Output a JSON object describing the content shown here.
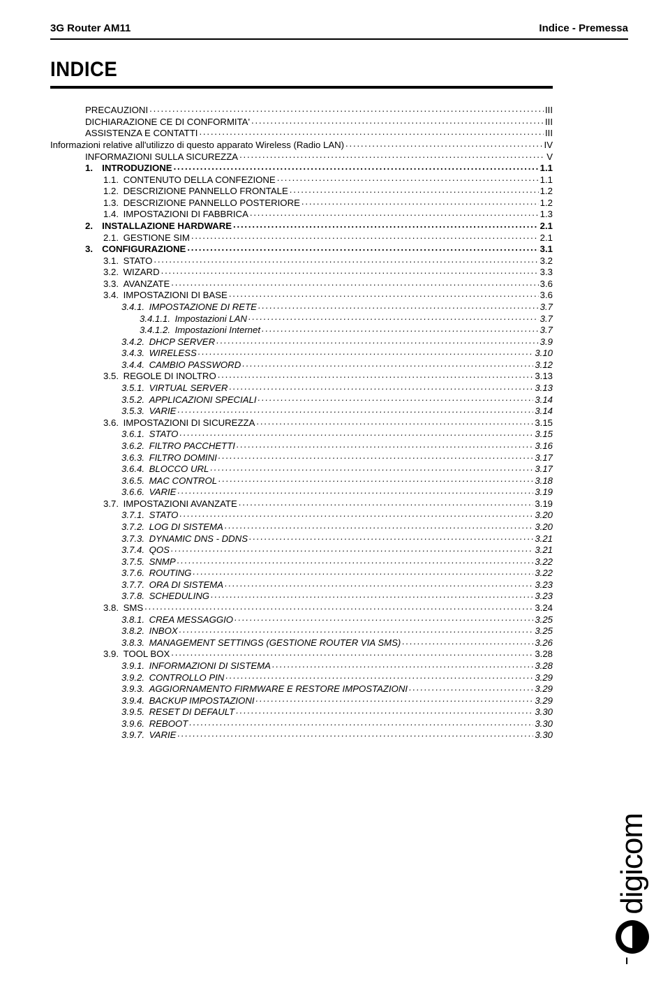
{
  "header": {
    "left": "3G Router AM11",
    "right": "Indice - Premessa"
  },
  "title": "INDICE",
  "page_number": "I",
  "logo_text": "digicom",
  "colors": {
    "text": "#000000",
    "background": "#ffffff"
  },
  "toc": [
    {
      "level": "ind0",
      "label": "PRECAUZIONI",
      "page": "III"
    },
    {
      "level": "ind0",
      "label": "DICHIARAZIONE CE DI CONFORMITA'",
      "page": "III"
    },
    {
      "level": "ind0",
      "label": "ASSISTENZA E CONTATTI",
      "page": "III"
    },
    {
      "level": "ind0",
      "label": "Informazioni relative all'utilizzo di questo apparato Wireless (Radio LAN)",
      "page": "IV",
      "nolead_indent": true
    },
    {
      "level": "ind0",
      "label": "INFORMAZIONI SULLA SICUREZZA",
      "page": "V"
    },
    {
      "level": "ind1",
      "label": "1. INTRODUZIONE",
      "page": "1.1"
    },
    {
      "level": "ind2",
      "label": "1.1. CONTENUTO DELLA CONFEZIONE",
      "page": "1.1"
    },
    {
      "level": "ind2",
      "label": "1.2. DESCRIZIONE PANNELLO FRONTALE",
      "page": "1.2"
    },
    {
      "level": "ind2",
      "label": "1.3. DESCRIZIONE PANNELLO POSTERIORE",
      "page": "1.2"
    },
    {
      "level": "ind2",
      "label": "1.4. IMPOSTAZIONI DI FABBRICA",
      "page": "1.3"
    },
    {
      "level": "ind1",
      "label": "2. INSTALLAZIONE HARDWARE",
      "page": "2.1"
    },
    {
      "level": "ind2",
      "label": "2.1. GESTIONE SIM",
      "page": "2.1"
    },
    {
      "level": "ind1",
      "label": "3. CONFIGURAZIONE",
      "page": "3.1"
    },
    {
      "level": "ind2",
      "label": "3.1. STATO",
      "page": "3.2"
    },
    {
      "level": "ind2",
      "label": "3.2. WIZARD",
      "page": "3.3"
    },
    {
      "level": "ind2",
      "label": "3.3. AVANZATE",
      "page": "3.6"
    },
    {
      "level": "ind2",
      "label": "3.4. IMPOSTAZIONI DI BASE",
      "page": "3.6"
    },
    {
      "level": "ind3",
      "label": "3.4.1. IMPOSTAZIONE DI RETE",
      "page": "3.7",
      "page_italic": true
    },
    {
      "level": "ind4",
      "label": "3.4.1.1. Impostazioni LAN",
      "page": "3.7",
      "page_italic": true
    },
    {
      "level": "ind4",
      "label": "3.4.1.2. Impostazioni Internet",
      "page": "3.7",
      "page_italic": true
    },
    {
      "level": "ind3",
      "label": "3.4.2. DHCP SERVER",
      "page": "3.9",
      "page_italic": true
    },
    {
      "level": "ind3",
      "label": "3.4.3. WIRELESS",
      "page": "3.10",
      "page_italic": true
    },
    {
      "level": "ind3",
      "label": "3.4.4. CAMBIO PASSWORD",
      "page": "3.12",
      "page_italic": true
    },
    {
      "level": "ind2",
      "label": "3.5. REGOLE DI INOLTRO",
      "page": "3.13"
    },
    {
      "level": "ind3",
      "label": "3.5.1. VIRTUAL SERVER",
      "page": "3.13",
      "page_italic": true
    },
    {
      "level": "ind3",
      "label": "3.5.2. APPLICAZIONI SPECIALI",
      "page": "3.14",
      "page_italic": true
    },
    {
      "level": "ind3",
      "label": "3.5.3. VARIE",
      "page": "3.14",
      "page_italic": true
    },
    {
      "level": "ind2",
      "label": "3.6. IMPOSTAZIONI DI SICUREZZA",
      "page": "3.15"
    },
    {
      "level": "ind3",
      "label": "3.6.1. STATO",
      "page": "3.15",
      "page_italic": true
    },
    {
      "level": "ind3",
      "label": "3.6.2. FILTRO PACCHETTI",
      "page": "3.16",
      "page_italic": true
    },
    {
      "level": "ind3",
      "label": "3.6.3. FILTRO DOMINI",
      "page": "3.17",
      "page_italic": true
    },
    {
      "level": "ind3",
      "label": "3.6.4. BLOCCO URL",
      "page": "3.17",
      "page_italic": true
    },
    {
      "level": "ind3",
      "label": "3.6.5. MAC CONTROL",
      "page": "3.18",
      "page_italic": true
    },
    {
      "level": "ind3",
      "label": "3.6.6. VARIE",
      "page": "3.19",
      "page_italic": true
    },
    {
      "level": "ind2",
      "label": "3.7. IMPOSTAZIONI AVANZATE",
      "page": "3.19"
    },
    {
      "level": "ind3",
      "label": "3.7.1. STATO",
      "page": "3.20",
      "page_italic": true
    },
    {
      "level": "ind3",
      "label": "3.7.2. LOG DI SISTEMA",
      "page": "3.20",
      "page_italic": true
    },
    {
      "level": "ind3",
      "label": "3.7.3. DYNAMIC DNS - DDNS",
      "page": "3.21",
      "page_italic": true
    },
    {
      "level": "ind3",
      "label": "3.7.4. QOS",
      "page": "3.21",
      "page_italic": true
    },
    {
      "level": "ind3",
      "label": "3.7.5. SNMP",
      "page": "3.22",
      "page_italic": true
    },
    {
      "level": "ind3",
      "label": "3.7.6. ROUTING",
      "page": "3.22",
      "page_italic": true
    },
    {
      "level": "ind3",
      "label": "3.7.7. ORA DI SISTEMA",
      "page": "3.23",
      "page_italic": true
    },
    {
      "level": "ind3",
      "label": "3.7.8. SCHEDULING",
      "page": "3.23",
      "page_italic": true
    },
    {
      "level": "ind2",
      "label": "3.8. SMS",
      "page": "3.24"
    },
    {
      "level": "ind3",
      "label": "3.8.1. CREA MESSAGGIO",
      "page": "3.25",
      "page_italic": true
    },
    {
      "level": "ind3",
      "label": "3.8.2. INBOX",
      "page": "3.25",
      "page_italic": true
    },
    {
      "level": "ind3",
      "label": "3.8.3. MANAGEMENT SETTINGS (GESTIONE ROUTER VIA SMS)",
      "page": "3.26",
      "page_italic": true
    },
    {
      "level": "ind2",
      "label": "3.9. TOOL BOX",
      "page": "3.28"
    },
    {
      "level": "ind3",
      "label": "3.9.1. INFORMAZIONI DI SISTEMA",
      "page": "3.28",
      "page_italic": true
    },
    {
      "level": "ind3",
      "label": "3.9.2. CONTROLLO PIN",
      "page": "3.29",
      "page_italic": true
    },
    {
      "level": "ind3",
      "label": "3.9.3. AGGIORNAMENTO FIRMWARE E RESTORE IMPOSTAZIONI",
      "page": "3.29",
      "page_italic": true
    },
    {
      "level": "ind3",
      "label": "3.9.4. BACKUP IMPOSTAZIONI",
      "page": "3.29",
      "page_italic": true
    },
    {
      "level": "ind3",
      "label": "3.9.5. RESET DI DEFAULT",
      "page": "3.30",
      "page_italic": true
    },
    {
      "level": "ind3",
      "label": "3.9.6. REBOOT",
      "page": "3.30",
      "page_italic": true
    },
    {
      "level": "ind3",
      "label": "3.9.7. VARIE",
      "page": "3.30",
      "page_italic": true
    }
  ]
}
